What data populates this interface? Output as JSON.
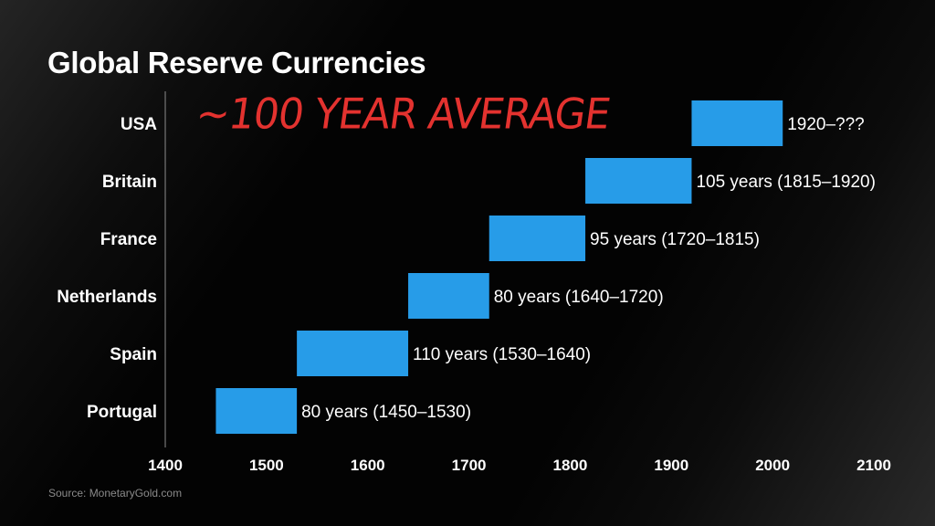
{
  "chart_data": {
    "type": "bar",
    "orientation": "horizontal-range",
    "title": "Global Reserve Currencies",
    "source": "Source: MonetaryGold.com",
    "annotation": "~100 YEAR AVERAGE",
    "categories": [
      "USA",
      "Britain",
      "France",
      "Netherlands",
      "Spain",
      "Portugal"
    ],
    "ranges": [
      {
        "start": 1920,
        "end": 2010,
        "label": "1920–???"
      },
      {
        "start": 1815,
        "end": 1920,
        "label": "105 years (1815–1920)"
      },
      {
        "start": 1720,
        "end": 1815,
        "label": "95 years (1720–1815)"
      },
      {
        "start": 1640,
        "end": 1720,
        "label": "80 years (1640–1720)"
      },
      {
        "start": 1530,
        "end": 1640,
        "label": "110 years (1530–1640)"
      },
      {
        "start": 1450,
        "end": 1530,
        "label": "80 years (1450–1530)"
      }
    ],
    "xlim": [
      1400,
      2100
    ],
    "xticks": [
      "1400",
      "1500",
      "1600",
      "1700",
      "1800",
      "1900",
      "2000",
      "2100"
    ],
    "grid": false,
    "colors": {
      "bar": "#279ce8",
      "annotation": "#e3322f",
      "background": "#030303"
    }
  }
}
